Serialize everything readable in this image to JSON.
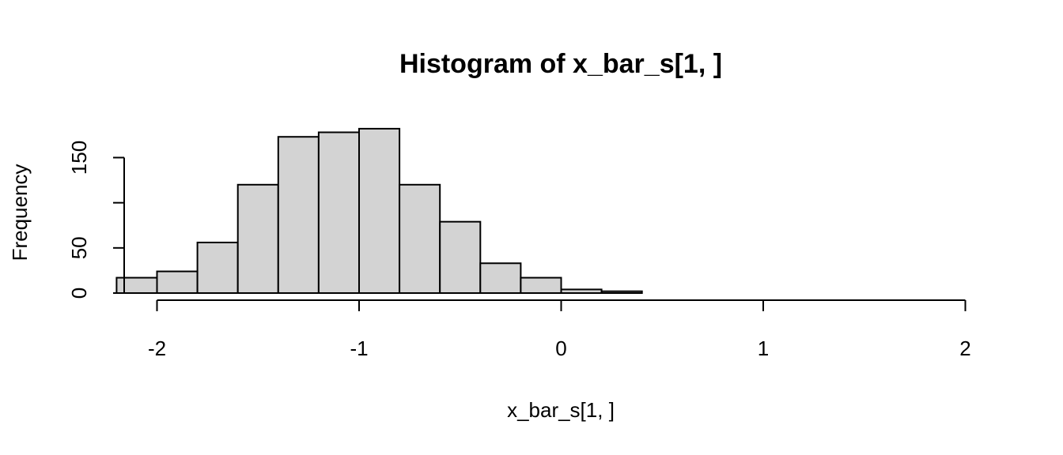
{
  "chart_data": {
    "type": "bar",
    "title": "Histogram of x_bar_s[1, ]",
    "xlabel": "x_bar_s[1, ]",
    "ylabel": "Frequency",
    "bin_edges": [
      -2.2,
      -2.0,
      -1.8,
      -1.6,
      -1.4,
      -1.2,
      -1.0,
      -0.8,
      -0.6,
      -0.4,
      -0.2,
      0.0,
      0.2,
      0.4
    ],
    "values": [
      17,
      24,
      56,
      120,
      173,
      178,
      182,
      120,
      79,
      33,
      17,
      4,
      2
    ],
    "xlim": [
      -2,
      2
    ],
    "ylim": [
      0,
      200
    ],
    "x_ticks": [
      -2,
      -1,
      0,
      1,
      2
    ],
    "x_tick_labels": [
      "-2",
      "-1",
      "0",
      "1",
      "2"
    ],
    "y_ticks": [
      0,
      50,
      100,
      150
    ],
    "y_tick_labels": [
      "0",
      "50",
      "",
      "150"
    ],
    "bar_fill": "#d3d3d3",
    "bar_stroke": "#000000",
    "grid": false,
    "legend": "none"
  }
}
